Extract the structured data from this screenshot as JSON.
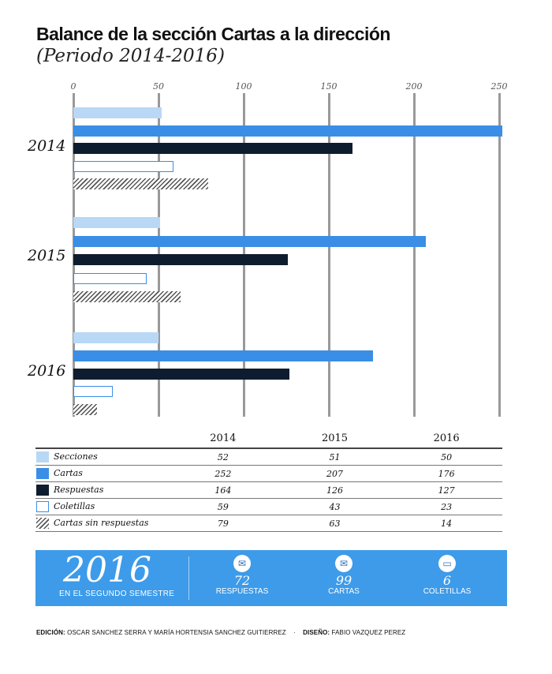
{
  "header": {
    "title": "Balance de la sección Cartas a la dirección",
    "subtitle": "(Periodo 2014-2016)"
  },
  "chart_data": {
    "type": "bar",
    "orientation": "horizontal",
    "categories": [
      "2014",
      "2015",
      "2016"
    ],
    "xlim": [
      0,
      255
    ],
    "ticks": [
      "0",
      "50",
      "100",
      "150",
      "200",
      "250"
    ],
    "tick_values": [
      0,
      50,
      100,
      150,
      200,
      250
    ],
    "series": [
      {
        "name": "Secciones",
        "values": [
          52,
          51,
          50
        ],
        "color": "#b8d8f6",
        "style": "fill"
      },
      {
        "name": "Cartas",
        "values": [
          252,
          207,
          176
        ],
        "color": "#3a8ee6",
        "style": "fill"
      },
      {
        "name": "Respuestas",
        "values": [
          164,
          126,
          127
        ],
        "color": "#0e1c2f",
        "style": "fill"
      },
      {
        "name": "Coletillas",
        "values": [
          59,
          43,
          23
        ],
        "color": "#3a8ee6",
        "style": "outline"
      },
      {
        "name": "Cartas sin respuestas",
        "values": [
          79,
          63,
          14
        ],
        "color": "#555555",
        "style": "hatch"
      }
    ]
  },
  "table": {
    "headers": [
      "2014",
      "2015",
      "2016"
    ]
  },
  "banner": {
    "year": "2016",
    "subtitle": "EN EL SEGUNDO SEMESTRE",
    "stats": [
      {
        "icon": "envelope-open-icon",
        "value": "72",
        "label": "RESPUESTAS"
      },
      {
        "icon": "envelope-icon",
        "value": "99",
        "label": "CARTAS"
      },
      {
        "icon": "card-icon",
        "value": "6",
        "label": "COLETILLAS"
      }
    ]
  },
  "credits": {
    "edicion_label": "EDICIÓN:",
    "edicion": "OSCAR SANCHEZ SERRA Y MARÍA HORTENSIA SANCHEZ GUITIERREZ",
    "sep": "·",
    "diseno_label": "DISEÑO:",
    "diseno": "FABIO VAZQUEZ PEREZ"
  }
}
